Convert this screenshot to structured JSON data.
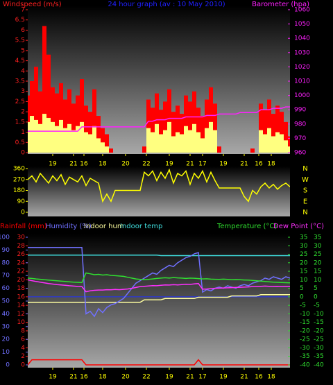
{
  "chart_data": [
    {
      "type": "bar",
      "title": "24 hour graph (av : 10 May 2010)",
      "axes": {
        "wind": {
          "title": "Windspeed (m/s)",
          "lim": [
            0,
            7
          ],
          "ticks": [
            0,
            0.5,
            1,
            1.5,
            2,
            2.5,
            3,
            3.5,
            4,
            4.5,
            5,
            5.5,
            6,
            6.5,
            7
          ],
          "color": "#ff2020"
        },
        "baro": {
          "title": "Barometer (hpa)",
          "lim": [
            960,
            1060
          ],
          "ticks": [
            960,
            970,
            980,
            990,
            1000,
            1010,
            1020,
            1030,
            1040,
            1050,
            1060
          ],
          "color": "#ff20ff"
        }
      },
      "xlim": [
        0,
        63
      ],
      "xticks": [
        {
          "value": 6,
          "label": "19"
        },
        {
          "value": 11,
          "label": "21"
        },
        {
          "value": 13.5,
          "label": "16"
        },
        {
          "value": 18,
          "label": "18"
        },
        {
          "value": 23.5,
          "label": "20"
        },
        {
          "value": 28.5,
          "label": "22"
        },
        {
          "value": 34,
          "label": "19"
        },
        {
          "value": 39,
          "label": "21"
        },
        {
          "value": 42,
          "label": "17"
        },
        {
          "value": 47,
          "label": "19"
        },
        {
          "value": 52,
          "label": "21"
        },
        {
          "value": 55.5,
          "label": "16"
        },
        {
          "value": 58.5,
          "label": "18"
        }
      ],
      "x": [
        0,
        1,
        2,
        3,
        4,
        5,
        6,
        7,
        8,
        9,
        10,
        11,
        12,
        13,
        14,
        15,
        16,
        17,
        18,
        19,
        20,
        21,
        22,
        23,
        24,
        25,
        26,
        27,
        28,
        29,
        30,
        31,
        32,
        33,
        34,
        35,
        36,
        37,
        38,
        39,
        40,
        41,
        42,
        43,
        44,
        45,
        46,
        47,
        48,
        49,
        50,
        51,
        52,
        53,
        54,
        55,
        56,
        57,
        58,
        59,
        60,
        61,
        62,
        63
      ],
      "series": [
        {
          "type": "bar",
          "axis": "wind",
          "color": "#ff0000",
          "values": [
            2.8,
            3.5,
            4.2,
            3.0,
            6.2,
            4.8,
            3.2,
            2.9,
            3.4,
            2.6,
            3.1,
            2.4,
            2.8,
            3.6,
            2.3,
            2.0,
            3.1,
            1.8,
            1.2,
            0.9,
            0.2,
            0,
            0,
            0,
            0,
            0,
            0,
            0,
            0.3,
            2.6,
            2.2,
            2.9,
            2.1,
            2.5,
            3.1,
            2.0,
            2.3,
            1.9,
            2.8,
            2.5,
            3.0,
            2.2,
            1.8,
            2.6,
            3.2,
            2.4,
            0.3,
            0,
            0,
            0,
            0,
            0,
            0,
            0,
            0.2,
            0,
            2.4,
            2.1,
            2.6,
            1.9,
            2.3,
            2.0,
            1.5,
            0.8
          ]
        },
        {
          "type": "bar",
          "axis": "wind",
          "color": "#ffff80",
          "values": [
            1.5,
            1.8,
            1.6,
            1.4,
            1.9,
            1.7,
            1.5,
            1.3,
            1.6,
            1.2,
            1.4,
            1.1,
            1.3,
            1.5,
            1.0,
            0.9,
            1.3,
            0.7,
            0.5,
            0.3,
            0,
            0,
            0,
            0,
            0,
            0,
            0,
            0,
            0,
            1.2,
            1.0,
            1.4,
            0.9,
            1.1,
            1.5,
            0.8,
            1.0,
            0.9,
            1.3,
            1.1,
            1.4,
            1.0,
            0.7,
            1.2,
            1.5,
            1.1,
            0,
            0,
            0,
            0,
            0,
            0,
            0,
            0,
            0,
            0,
            1.1,
            0.9,
            1.2,
            0.8,
            1.0,
            0.9,
            0.6,
            0.3
          ]
        },
        {
          "type": "line",
          "axis": "baro",
          "color": "#ff20ff",
          "values": [
            975,
            975,
            975,
            975,
            975,
            975,
            975,
            975,
            975,
            975,
            975,
            975,
            975,
            978,
            978,
            978,
            978,
            978,
            978,
            978,
            978,
            978,
            978,
            978,
            978,
            978,
            978,
            978,
            978,
            982,
            982,
            983,
            983,
            983,
            984,
            984,
            984,
            984,
            985,
            985,
            985,
            985,
            985,
            986,
            986,
            986,
            987,
            987,
            987,
            987,
            987,
            988,
            988,
            988,
            988,
            988,
            990,
            990,
            990,
            991,
            991,
            991,
            992,
            992
          ]
        }
      ]
    },
    {
      "type": "line",
      "axes": {
        "dir": {
          "lim": [
            0,
            360
          ],
          "ticks": [
            0,
            90,
            180,
            270,
            360
          ],
          "color": "#ffff00"
        }
      },
      "compass": [
        "N",
        "W",
        "S",
        "E",
        "N"
      ],
      "xlim": [
        0,
        63
      ],
      "x": [
        0,
        1,
        2,
        3,
        4,
        5,
        6,
        7,
        8,
        9,
        10,
        11,
        12,
        13,
        14,
        15,
        16,
        17,
        18,
        19,
        20,
        21,
        22,
        23,
        24,
        25,
        26,
        27,
        28,
        29,
        30,
        31,
        32,
        33,
        34,
        35,
        36,
        37,
        38,
        39,
        40,
        41,
        42,
        43,
        44,
        45,
        46,
        47,
        48,
        49,
        50,
        51,
        52,
        53,
        54,
        55,
        56,
        57,
        58,
        59,
        60,
        61,
        62,
        63
      ],
      "series": [
        {
          "type": "line",
          "axis": "dir",
          "color": "#ffff00",
          "values": [
            270,
            300,
            250,
            320,
            280,
            240,
            300,
            260,
            310,
            230,
            290,
            270,
            250,
            300,
            220,
            280,
            260,
            240,
            90,
            150,
            90,
            180,
            180,
            180,
            180,
            180,
            180,
            180,
            330,
            300,
            340,
            260,
            330,
            280,
            350,
            240,
            320,
            300,
            340,
            230,
            320,
            280,
            340,
            250,
            330,
            260,
            200,
            200,
            200,
            200,
            200,
            200,
            130,
            90,
            180,
            150,
            210,
            240,
            200,
            230,
            190,
            220,
            240,
            210
          ]
        }
      ]
    },
    {
      "type": "line",
      "axes": {
        "rain": {
          "lim": [
            0,
            30
          ],
          "ticks": [
            0,
            2,
            4,
            6,
            8,
            10,
            12,
            14,
            16,
            18,
            20,
            22,
            24,
            26,
            28,
            30
          ],
          "color": "#ff2020"
        },
        "hum": {
          "lim": [
            0,
            100
          ],
          "ticks": [
            0,
            10,
            20,
            30,
            40,
            50,
            60,
            70,
            80,
            90,
            100
          ],
          "color": "#7070ff"
        },
        "temp": {
          "lim": [
            -40,
            35
          ],
          "ticks": [
            -40,
            -35,
            -30,
            -25,
            -20,
            -15,
            -10,
            -5,
            0,
            5,
            10,
            15,
            20,
            25,
            30,
            35
          ],
          "color": "#30e030"
        }
      },
      "xlim": [
        0,
        63
      ],
      "xticks": [
        {
          "value": 6,
          "label": "19"
        },
        {
          "value": 11,
          "label": "21"
        },
        {
          "value": 13.5,
          "label": "16"
        },
        {
          "value": 18,
          "label": "18"
        },
        {
          "value": 23.5,
          "label": "20"
        },
        {
          "value": 28.5,
          "label": "22"
        },
        {
          "value": 34,
          "label": "19"
        },
        {
          "value": 39,
          "label": "21"
        },
        {
          "value": 42,
          "label": "17"
        },
        {
          "value": 47,
          "label": "19"
        },
        {
          "value": 52,
          "label": "21"
        },
        {
          "value": 55.5,
          "label": "16"
        },
        {
          "value": 58.5,
          "label": "18"
        }
      ],
      "x": [
        0,
        1,
        2,
        3,
        4,
        5,
        6,
        7,
        8,
        9,
        10,
        11,
        12,
        13,
        14,
        15,
        16,
        17,
        18,
        19,
        20,
        21,
        22,
        23,
        24,
        25,
        26,
        27,
        28,
        29,
        30,
        31,
        32,
        33,
        34,
        35,
        36,
        37,
        38,
        39,
        40,
        41,
        42,
        43,
        44,
        45,
        46,
        47,
        48,
        49,
        50,
        51,
        52,
        53,
        54,
        55,
        56,
        57,
        58,
        59,
        60,
        61,
        62,
        63
      ],
      "series": [
        {
          "name": "Rainfall (mm)",
          "type": "line",
          "axis": "rain",
          "color": "#ff0000",
          "values": [
            0,
            1.2,
            1.2,
            1.2,
            1.2,
            1.2,
            1.2,
            1.2,
            1.2,
            1.2,
            1.2,
            1.2,
            1.2,
            1.2,
            0,
            0,
            0,
            0,
            0,
            0,
            0,
            0,
            0,
            0,
            0,
            0,
            0,
            0,
            0,
            0,
            0,
            0,
            0,
            0,
            0,
            0,
            0,
            0,
            0,
            0,
            0,
            1.2,
            0,
            0,
            0,
            0,
            0,
            0,
            0,
            0,
            0,
            0,
            0,
            0,
            0,
            0,
            0,
            0,
            0,
            0,
            0,
            0,
            0,
            0
          ]
        },
        {
          "name": "Humidity (%)",
          "type": "line",
          "axis": "hum",
          "color": "#7070ff",
          "values": [
            92,
            92,
            92,
            92,
            92,
            92,
            92,
            92,
            92,
            92,
            92,
            92,
            92,
            92,
            40,
            42,
            38,
            44,
            41,
            45,
            47,
            48,
            50,
            52,
            56,
            60,
            64,
            66,
            68,
            70,
            72,
            71,
            74,
            76,
            78,
            77,
            80,
            82,
            84,
            85,
            87,
            88,
            57,
            59,
            58,
            60,
            61,
            60,
            62,
            61,
            60,
            62,
            63,
            62,
            64,
            65,
            66,
            68,
            67,
            69,
            68,
            67,
            69,
            68
          ]
        },
        {
          "name": "Indoor hum",
          "type": "line",
          "axis": "hum",
          "color": "#ffffa0",
          "values": [
            49,
            49,
            49,
            49,
            49,
            49,
            49,
            49,
            49,
            49,
            49,
            49,
            49,
            49,
            49,
            49,
            49,
            49,
            49,
            49,
            49,
            49,
            49,
            49,
            49,
            49,
            49,
            49,
            51,
            51,
            51,
            51,
            51,
            52,
            52,
            52,
            52,
            52,
            52,
            52,
            52,
            53,
            53,
            53,
            53,
            53,
            53,
            53,
            53,
            54,
            54,
            54,
            54,
            54,
            54,
            54,
            55,
            55,
            55,
            55,
            55,
            55,
            55,
            55
          ]
        },
        {
          "name": "Indoor temp",
          "type": "line",
          "axis": "temp",
          "color": "#40e0e0",
          "values": [
            24.5,
            24.5,
            24.5,
            24.5,
            24.5,
            24.5,
            24.5,
            24.5,
            24.5,
            24.5,
            24.5,
            24.5,
            24.5,
            24.5,
            24.5,
            24.5,
            24.5,
            24.5,
            24.5,
            24.5,
            24.5,
            24.5,
            24.5,
            24.5,
            24.5,
            24.5,
            24.5,
            24.5,
            24.5,
            24.5,
            24.5,
            24.5,
            24.2,
            24.2,
            24.2,
            24.2,
            24.2,
            24.2,
            24.2,
            24.2,
            24.2,
            24.2,
            24.2,
            24.2,
            24.2,
            24.2,
            24.2,
            24.2,
            24.2,
            24.2,
            24.2,
            24.2,
            24.2,
            24.2,
            24.2,
            24.2,
            24.2,
            24.2,
            24.2,
            24.2,
            24.2,
            24.2,
            24.2,
            24.2
          ]
        },
        {
          "name": "Temperature (°C)",
          "type": "line",
          "axis": "temp",
          "color": "#30e030",
          "values": [
            11,
            10.8,
            10.5,
            10.3,
            10,
            9.8,
            9.6,
            9.4,
            9.2,
            9,
            8.8,
            8.6,
            8.5,
            8.4,
            14,
            13.5,
            13,
            13.2,
            12.8,
            13,
            12.6,
            12.4,
            12.2,
            12,
            11.5,
            11,
            10.5,
            10.2,
            10,
            10.2,
            10.5,
            10.8,
            11,
            11.2,
            11,
            11.3,
            11.1,
            11,
            10.8,
            11,
            10.9,
            10.7,
            10.5,
            10.6,
            10.4,
            10.3,
            10.2,
            10.4,
            10.2,
            10,
            10.1,
            10,
            9.9,
            9.8,
            9.6,
            9.4,
            9.2,
            9,
            8.8,
            8.6,
            8.5,
            8.4,
            8.3,
            8.2
          ]
        },
        {
          "name": "Dew Point (°C)",
          "type": "line",
          "axis": "temp",
          "color": "#ff30ff",
          "values": [
            10,
            9.5,
            9,
            8.6,
            8.2,
            7.8,
            7.5,
            7.2,
            7,
            6.8,
            6.5,
            6.3,
            6.1,
            6,
            3,
            3.5,
            3.8,
            4,
            4,
            4.2,
            4.1,
            4.3,
            4.2,
            4.4,
            4.6,
            5,
            5.5,
            6,
            6.2,
            6.4,
            6.6,
            6.5,
            6.8,
            7,
            6.9,
            7.1,
            7,
            7.2,
            7.4,
            7.3,
            7.6,
            7.8,
            4.5,
            4.6,
            4.8,
            5,
            5.1,
            5.2,
            5.3,
            5.4,
            5.5,
            5.6,
            5.7,
            5.8,
            6,
            6.1,
            6.2,
            6.3,
            6.2,
            6.1,
            6.2,
            6,
            6.1,
            6.2
          ]
        }
      ]
    }
  ]
}
